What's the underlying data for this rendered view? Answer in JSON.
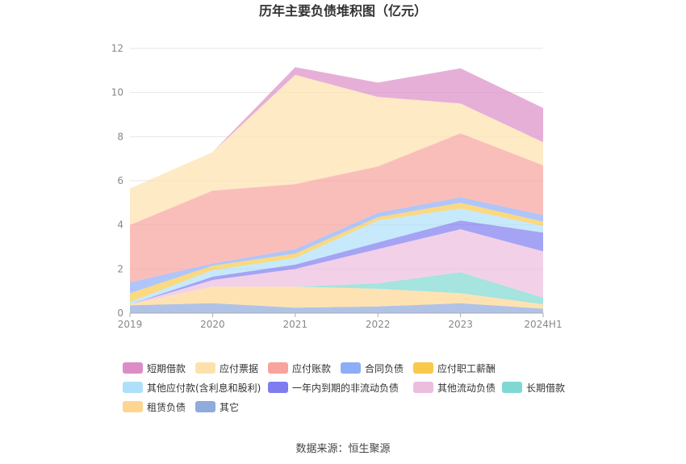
{
  "chart_data": {
    "type": "area",
    "stacked": true,
    "title": "历年主要负债堆积图（亿元）",
    "x": [
      "2019",
      "2020",
      "2021",
      "2022",
      "2023",
      "2024H1"
    ],
    "ylim": [
      0,
      12
    ],
    "yticks": [
      0,
      2,
      4,
      6,
      8,
      10,
      12
    ],
    "grid": "horizontal",
    "legend_position": "bottom",
    "series": [
      {
        "name": "其它",
        "color": "#8faadc",
        "values": [
          0.35,
          0.45,
          0.25,
          0.3,
          0.45,
          0.2
        ]
      },
      {
        "name": "租赁负债",
        "color": "#ffd591",
        "values": [
          0.05,
          0.75,
          0.95,
          0.8,
          0.45,
          0.2
        ]
      },
      {
        "name": "长期借款",
        "color": "#7fd8d2",
        "values": [
          0.0,
          0.0,
          0.0,
          0.25,
          0.95,
          0.3
        ]
      },
      {
        "name": "其他流动负债",
        "color": "#ecbede",
        "values": [
          0.0,
          0.3,
          0.8,
          1.55,
          1.95,
          2.1
        ]
      },
      {
        "name": "一年内到期的非流动负债",
        "color": "#7f7cf0",
        "values": [
          0.0,
          0.15,
          0.2,
          0.3,
          0.4,
          0.85
        ]
      },
      {
        "name": "其他应付款(含利息和股利)",
        "color": "#aee0fa",
        "values": [
          0.1,
          0.3,
          0.3,
          1.0,
          0.55,
          0.3
        ]
      },
      {
        "name": "应付职工薪酬",
        "color": "#f8c94a",
        "values": [
          0.4,
          0.2,
          0.2,
          0.15,
          0.25,
          0.2
        ]
      },
      {
        "name": "合同负债",
        "color": "#8eadf7",
        "values": [
          0.5,
          0.1,
          0.2,
          0.2,
          0.25,
          0.3
        ]
      },
      {
        "name": "应付账款",
        "color": "#f8a39d",
        "values": [
          2.6,
          3.3,
          2.95,
          2.1,
          2.9,
          2.25
        ]
      },
      {
        "name": "应付票据",
        "color": "#fde1ad",
        "values": [
          1.65,
          1.75,
          4.95,
          3.15,
          1.35,
          1.05
        ]
      },
      {
        "name": "短期借款",
        "color": "#dc8dc8",
        "values": [
          0.0,
          0.0,
          0.35,
          0.65,
          1.6,
          1.55
        ]
      }
    ],
    "legend_order": [
      "短期借款",
      "应付票据",
      "应付账款",
      "合同负债",
      "应付职工薪酬",
      "其他应付款(含利息和股利)",
      "一年内到期的非流动负债",
      "其他流动负债",
      "长期借款",
      "租赁负债",
      "其它"
    ]
  },
  "source_text": "数据来源：恒生聚源"
}
